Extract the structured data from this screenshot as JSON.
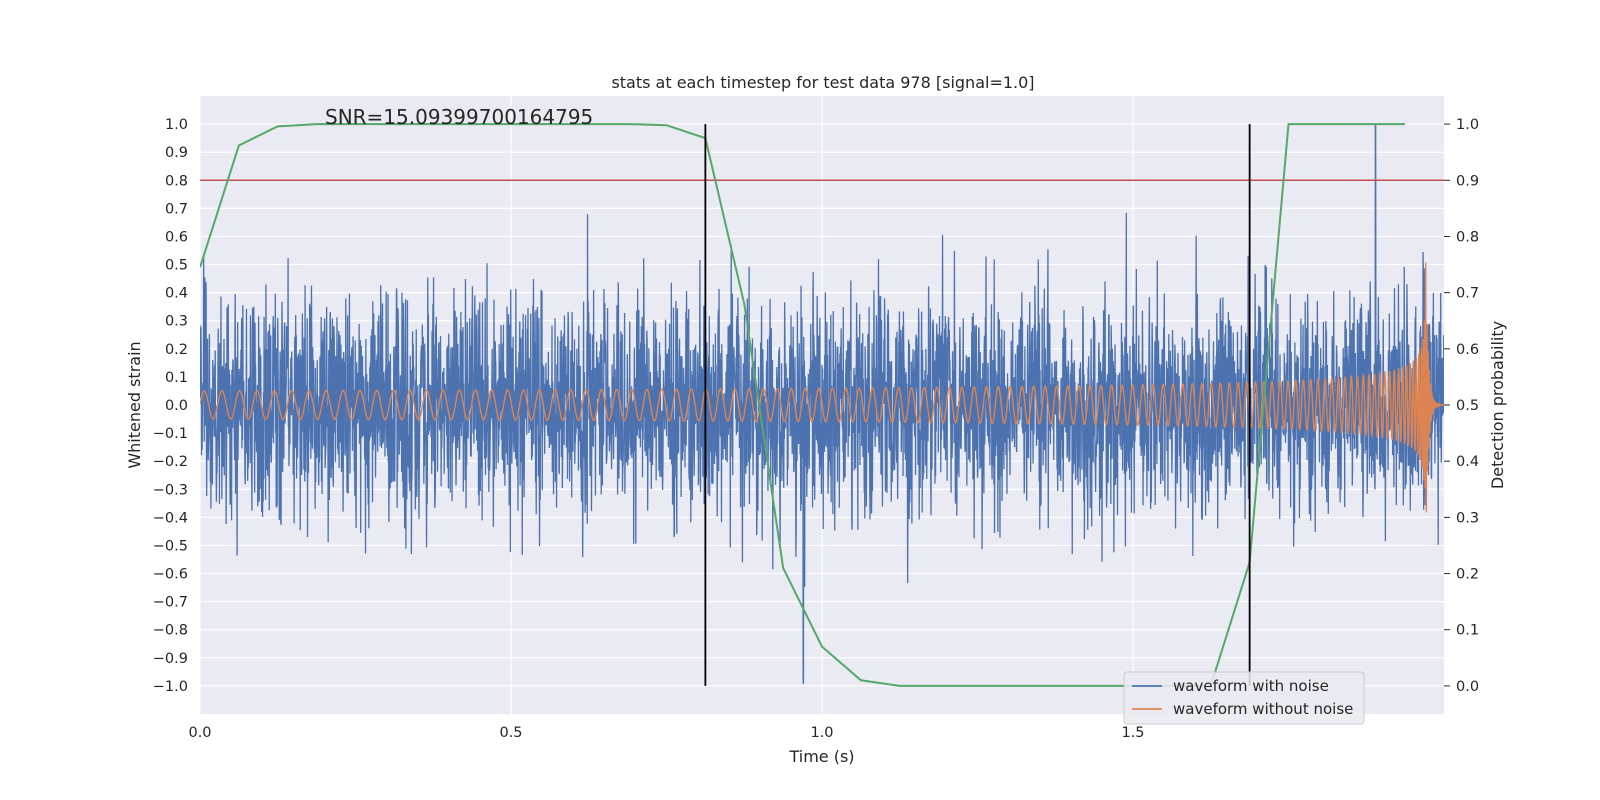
{
  "chart_data": {
    "type": "line",
    "title": "stats at each timestep for test data 978 [signal=1.0]",
    "annotation": "SNR=15.093997001647950",
    "annotation_text": "SNR=15.09399700164795",
    "xlabel": "Time (s)",
    "ylabel_left": "Whitened strain",
    "ylabel_right": "Detection probability",
    "xlim": [
      0.0,
      2.0
    ],
    "ylim_left": [
      -1.1,
      1.1
    ],
    "ylim_right": [
      -0.05,
      1.05
    ],
    "x_ticks": [
      {
        "value": 0.0,
        "label": "0.0"
      },
      {
        "value": 0.5,
        "label": "0.5"
      },
      {
        "value": 1.0,
        "label": "1.0"
      },
      {
        "value": 1.5,
        "label": "1.5"
      }
    ],
    "y_left_ticks": [
      {
        "value": 1.0,
        "label": "1.0"
      },
      {
        "value": 0.9,
        "label": "0.9"
      },
      {
        "value": 0.8,
        "label": "0.8"
      },
      {
        "value": 0.7,
        "label": "0.7"
      },
      {
        "value": 0.6,
        "label": "0.6"
      },
      {
        "value": 0.5,
        "label": "0.5"
      },
      {
        "value": 0.4,
        "label": "0.4"
      },
      {
        "value": 0.3,
        "label": "0.3"
      },
      {
        "value": 0.2,
        "label": "0.2"
      },
      {
        "value": 0.1,
        "label": "0.1"
      },
      {
        "value": 0.0,
        "label": "0.0"
      },
      {
        "value": -0.1,
        "label": "−0.1"
      },
      {
        "value": -0.2,
        "label": "−0.2"
      },
      {
        "value": -0.3,
        "label": "−0.3"
      },
      {
        "value": -0.4,
        "label": "−0.4"
      },
      {
        "value": -0.5,
        "label": "−0.5"
      },
      {
        "value": -0.6,
        "label": "−0.6"
      },
      {
        "value": -0.7,
        "label": "−0.7"
      },
      {
        "value": -0.8,
        "label": "−0.8"
      },
      {
        "value": -0.9,
        "label": "−0.9"
      },
      {
        "value": -1.0,
        "label": "−1.0"
      }
    ],
    "y_right_ticks": [
      {
        "value": 1.0,
        "label": "1.0"
      },
      {
        "value": 0.9,
        "label": "0.9"
      },
      {
        "value": 0.8,
        "label": "0.8"
      },
      {
        "value": 0.7,
        "label": "0.7"
      },
      {
        "value": 0.6,
        "label": "0.6"
      },
      {
        "value": 0.5,
        "label": "0.5"
      },
      {
        "value": 0.4,
        "label": "0.4"
      },
      {
        "value": 0.3,
        "label": "0.3"
      },
      {
        "value": 0.2,
        "label": "0.2"
      },
      {
        "value": 0.1,
        "label": "0.1"
      },
      {
        "value": 0.0,
        "label": "0.0"
      }
    ],
    "threshold": {
      "axis": "left",
      "value": 0.8,
      "color": "#c44e52"
    },
    "vertical_markers": [
      {
        "x": 0.8125,
        "y_from": -1.0,
        "y_to": 1.0,
        "color": "#000000"
      },
      {
        "x": 1.6875,
        "y_from": -1.0,
        "y_to": 1.0,
        "color": "#000000"
      }
    ],
    "grid": true,
    "background": "#eaeaf2",
    "legend_position": "lower-right",
    "series": [
      {
        "name": "waveform with noise",
        "axis": "left",
        "color": "#4c72b0",
        "sample_rate": 2048,
        "t_end": 2.0,
        "noise_std": 0.2,
        "peak": {
          "x": 1.89,
          "y": 1.0
        },
        "trough": {
          "x": 0.97,
          "y": -0.99
        }
      },
      {
        "name": "waveform without noise",
        "axis": "left",
        "color": "#dd8452",
        "chirp": true,
        "amplitude_start": 0.05,
        "amplitude_peak": 0.62,
        "frequency_start": 35,
        "merger_time": 1.97,
        "t_end": 2.0
      },
      {
        "name": "detection probability",
        "axis": "right",
        "color": "#55a868",
        "x": [
          0.0,
          0.0625,
          0.125,
          0.1875,
          0.25,
          0.3125,
          0.375,
          0.4375,
          0.5,
          0.5625,
          0.625,
          0.6875,
          0.75,
          0.8125,
          0.875,
          0.9375,
          1.0,
          1.0625,
          1.125,
          1.1875,
          1.25,
          1.3125,
          1.375,
          1.4375,
          1.5,
          1.5625,
          1.625,
          1.6875,
          1.75,
          1.8125,
          1.875,
          1.9375
        ],
        "y": [
          0.745,
          0.962,
          0.996,
          1.0,
          1.0,
          1.0,
          1.0,
          1.0,
          1.0,
          1.0,
          1.0,
          1.0,
          0.998,
          0.975,
          0.68,
          0.21,
          0.07,
          0.01,
          0.0,
          0.0,
          0.0,
          0.0,
          0.0,
          0.0,
          0.0,
          0.0,
          0.0,
          0.22,
          1.0,
          1.0,
          1.0,
          1.0
        ]
      }
    ]
  }
}
